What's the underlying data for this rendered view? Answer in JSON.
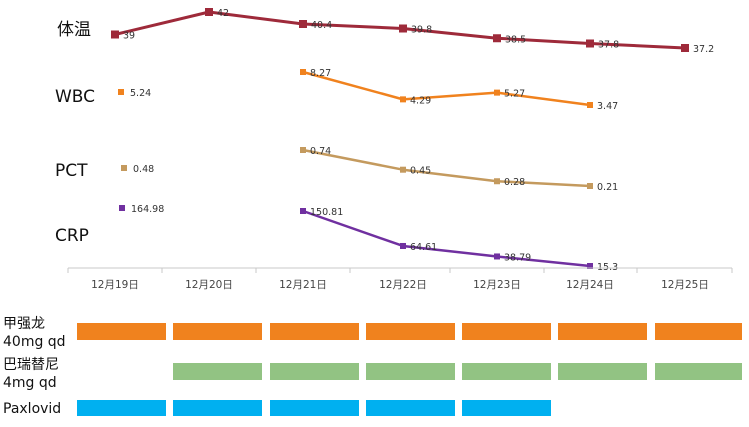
{
  "chart_data": {
    "type": "line",
    "categories": [
      "12月19日",
      "12月20日",
      "12月21日",
      "12月22日",
      "12月23日",
      "12月24日",
      "12月25日"
    ],
    "series": [
      {
        "name": "体温",
        "color": "#9e2a3a",
        "marker": "square",
        "values": [
          39,
          42,
          40.4,
          39.8,
          38.5,
          37.8,
          37.2
        ],
        "labels": [
          "39",
          "42",
          "40.4",
          "39.8",
          "38.5",
          "37.8",
          "37.2"
        ]
      },
      {
        "name": "WBC",
        "color": "#f0821e",
        "marker": "square",
        "legend_value": "5.24",
        "values": [
          null,
          null,
          8.27,
          4.29,
          5.27,
          3.47,
          null
        ],
        "labels": [
          null,
          null,
          "8.27",
          "4.29",
          "5.27",
          "3.47",
          null
        ]
      },
      {
        "name": "PCT",
        "color": "#c49a5e",
        "marker": "square",
        "legend_value": "0.48",
        "values": [
          null,
          null,
          0.74,
          0.45,
          0.28,
          0.21,
          null
        ],
        "labels": [
          null,
          null,
          "0.74",
          "0.45",
          "0.28",
          "0.21",
          null
        ]
      },
      {
        "name": "CRP",
        "color": "#7030a0",
        "marker": "square",
        "legend_value": "164.98",
        "values": [
          null,
          null,
          150.81,
          64.61,
          38.79,
          15.3,
          null
        ],
        "labels": [
          null,
          null,
          "150.81",
          "64.61",
          "38.79",
          "15.3",
          null
        ]
      }
    ],
    "medications": [
      {
        "name_line1": "甲强龙",
        "name_line2": "40mg qd",
        "color": "#f0821e",
        "days": [
          1,
          1,
          1,
          1,
          1,
          1,
          1
        ]
      },
      {
        "name_line1": "巴瑞替尼",
        "name_line2": "4mg qd",
        "color": "#92c383",
        "days": [
          0,
          1,
          1,
          1,
          1,
          1,
          1
        ]
      },
      {
        "name_line1": "Paxlovid",
        "name_line2": "",
        "color": "#00b0f0",
        "days": [
          1,
          1,
          1,
          1,
          1,
          0,
          0
        ]
      }
    ],
    "title": "",
    "xlabel": "",
    "ylabel": ""
  }
}
